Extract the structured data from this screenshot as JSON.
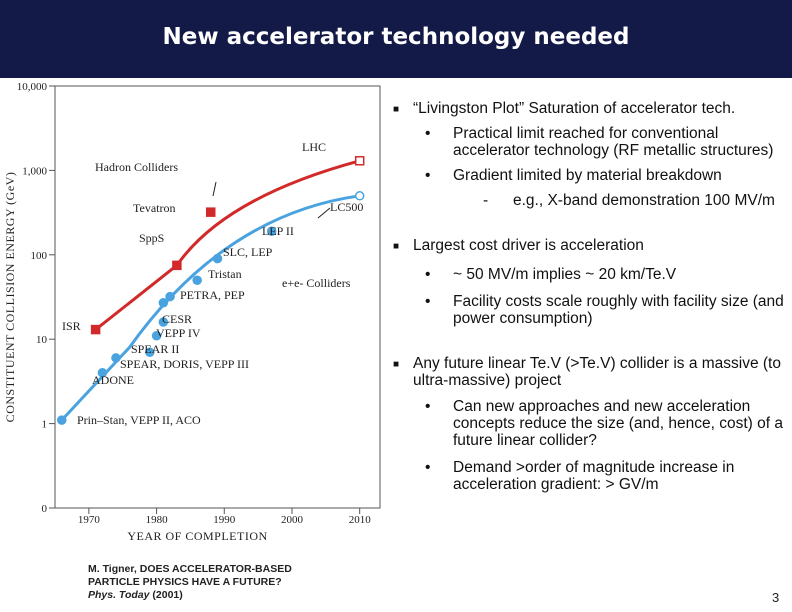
{
  "slide": {
    "title": "New accelerator technology needed",
    "page_number": "3",
    "citation": {
      "line1": "M. Tigner, DOES ACCELERATOR-BASED",
      "line2": "PARTICLE PHYSICS HAVE A FUTURE?",
      "journal": "Phys. Today",
      "year": "(2001)"
    }
  },
  "bullets": [
    {
      "text": "“Livingston Plot”  Saturation of accelerator tech.",
      "children": [
        {
          "text": "Practical limit reached for conventional accelerator technology (RF metallic structures)"
        },
        {
          "text": "Gradient limited by material breakdown",
          "children": [
            {
              "text": "e.g., X-band demonstration 100 MV/m"
            }
          ]
        }
      ]
    },
    {
      "text": "Largest cost driver is acceleration",
      "children": [
        {
          "text": "~ 50 MV/m  implies  ~ 20 km/Te.V"
        },
        {
          "text": "Facility costs scale roughly with facility size (and power consumption)"
        }
      ]
    },
    {
      "text": "Any future linear Te.V (>Te.V) collider is a massive (to ultra-massive) project",
      "children": [
        {
          "text": "Can new approaches and new acceleration concepts reduce the size (and, hence, cost) of a future linear collider?"
        },
        {
          "text": "Demand >order of magnitude increase in acceleration gradient:  > GV/m"
        }
      ]
    }
  ],
  "chart_data": {
    "type": "scatter",
    "xlabel": "YEAR OF COMPLETION",
    "ylabel": "CONSTITUENT COLLISION ENERGY (GeV)",
    "x_ticks": [
      "1970",
      "1980",
      "1990",
      "2000",
      "2010"
    ],
    "y_ticks": [
      "0",
      "1",
      "10",
      "100",
      "1,000",
      "10,000"
    ],
    "xlim": [
      1965,
      2013
    ],
    "ylim_log": [
      0,
      10000
    ],
    "y_scale": "log",
    "colors": {
      "hadron": "#d22a2a",
      "lepton": "#4aa3df",
      "text": "#222222",
      "grid": "#555555"
    },
    "series": [
      {
        "name": "Hadron Colliders",
        "color": "#d22a2a",
        "points": [
          {
            "label": "ISR",
            "x": 1971,
            "y": 13
          },
          {
            "label": "SppS",
            "x": 1983,
            "y": 75
          },
          {
            "label": "Tevatron",
            "x": 1988,
            "y": 320
          },
          {
            "label": "LHC",
            "x": 2010,
            "y": 1300
          }
        ]
      },
      {
        "name": "e+e- Colliders",
        "color": "#4aa3df",
        "points": [
          {
            "label": "Prin–Stan, VEPP II, ACO",
            "x": 1966,
            "y": 1.1
          },
          {
            "label": "ADONE",
            "x": 1972,
            "y": 4
          },
          {
            "label": "SPEAR, DORIS, VEPP III",
            "x": 1974,
            "y": 6
          },
          {
            "label": "SPEAR II",
            "x": 1979,
            "y": 7
          },
          {
            "label": "VEPP IV",
            "x": 1980,
            "y": 11
          },
          {
            "label": "CESR",
            "x": 1981,
            "y": 16
          },
          {
            "label": "PETRA, PEP",
            "x": 1981,
            "y": 27
          },
          {
            "label": "PETRA, PEP",
            "x": 1982,
            "y": 32
          },
          {
            "label": "Tristan",
            "x": 1986,
            "y": 50
          },
          {
            "label": "SLC, LEP",
            "x": 1989,
            "y": 90
          },
          {
            "label": "LEP II",
            "x": 1997,
            "y": 190
          },
          {
            "label": "LC500",
            "x": 2010,
            "y": 500
          }
        ]
      }
    ],
    "annotations": [
      "Hadron Colliders",
      "LHC",
      "Tevatron",
      "SppS",
      "ISR",
      "LEP II",
      "SLC, LEP",
      "Tristan",
      "PETRA, PEP",
      "CESR",
      "VEPP IV",
      "SPEAR II",
      "SPEAR, DORIS, VEPP III",
      "ADONE",
      "Prin–Stan, VEPP II, ACO",
      "LC500",
      "e+e- Colliders"
    ]
  }
}
